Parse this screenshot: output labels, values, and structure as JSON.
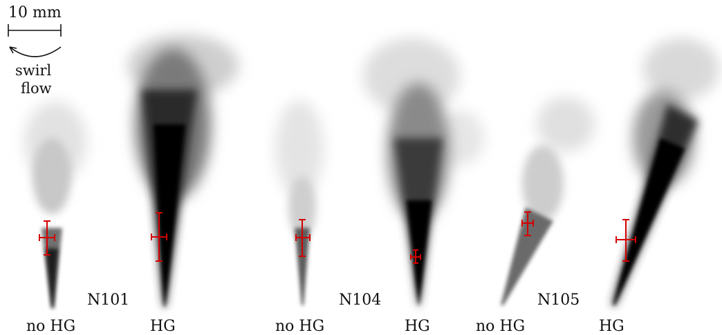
{
  "legend": {
    "scale_label": "10 mm",
    "swirl_label_line1": "swirl",
    "swirl_label_line2": "flow"
  },
  "groups": [
    {
      "name": "N101"
    },
    {
      "name": "N104"
    },
    {
      "name": "N105"
    }
  ],
  "sprays": [
    {
      "group": "N101",
      "condition": "no HG"
    },
    {
      "group": "N101",
      "condition": "HG"
    },
    {
      "group": "N104",
      "condition": "no HG"
    },
    {
      "group": "N104",
      "condition": "HG"
    },
    {
      "group": "N105",
      "condition": "no HG"
    },
    {
      "group": "N105",
      "condition": "HG"
    }
  ],
  "colors": {
    "error_bar": "#d40000",
    "plume_dark": "#000000",
    "plume_light": "#d9d9d9"
  }
}
